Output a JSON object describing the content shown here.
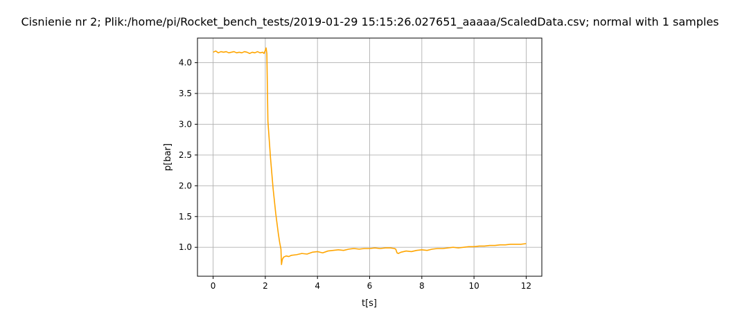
{
  "chart_data": {
    "type": "line",
    "title": "Cisnienie nr 2; Plik:/home/pi/Rocket_bench_tests/2019-01-29 15:15:26.027651_aaaaa/ScaledData.csv; normal with 1 samples",
    "xlabel": "t[s]",
    "ylabel": "p[bar]",
    "xlim": [
      -0.6,
      12.6
    ],
    "ylim": [
      0.53,
      4.4
    ],
    "xticks": [
      0,
      2,
      4,
      6,
      8,
      10,
      12
    ],
    "xtick_labels": [
      "0",
      "2",
      "4",
      "6",
      "8",
      "10",
      "12"
    ],
    "yticks": [
      1.0,
      1.5,
      2.0,
      2.5,
      3.0,
      3.5,
      4.0
    ],
    "ytick_labels": [
      "1.0",
      "1.5",
      "2.0",
      "2.5",
      "3.0",
      "3.5",
      "4.0"
    ],
    "grid": true,
    "legend": "none",
    "series": [
      {
        "color": "#ffa500",
        "x": [
          0.0,
          0.1,
          0.2,
          0.3,
          0.4,
          0.5,
          0.6,
          0.7,
          0.8,
          0.9,
          1.0,
          1.1,
          1.2,
          1.3,
          1.4,
          1.5,
          1.6,
          1.7,
          1.8,
          1.9,
          1.95,
          2.0,
          2.03,
          2.06,
          2.08,
          2.1,
          2.15,
          2.2,
          2.3,
          2.4,
          2.5,
          2.55,
          2.6,
          2.62,
          2.65,
          2.7,
          2.8,
          2.9,
          3.0,
          3.2,
          3.4,
          3.6,
          3.8,
          4.0,
          4.2,
          4.4,
          4.6,
          4.8,
          5.0,
          5.2,
          5.4,
          5.6,
          5.8,
          6.0,
          6.2,
          6.4,
          6.6,
          6.8,
          6.95,
          7.0,
          7.05,
          7.1,
          7.2,
          7.4,
          7.6,
          7.8,
          8.0,
          8.2,
          8.4,
          8.6,
          8.8,
          9.0,
          9.2,
          9.4,
          9.6,
          9.8,
          10.0,
          10.2,
          10.4,
          10.6,
          10.8,
          11.0,
          11.2,
          11.4,
          11.6,
          11.8,
          12.0
        ],
        "y": [
          4.17,
          4.19,
          4.16,
          4.18,
          4.17,
          4.18,
          4.16,
          4.17,
          4.18,
          4.16,
          4.17,
          4.16,
          4.18,
          4.17,
          4.15,
          4.17,
          4.16,
          4.18,
          4.16,
          4.17,
          4.15,
          4.2,
          4.24,
          4.15,
          3.6,
          3.05,
          2.75,
          2.45,
          1.95,
          1.55,
          1.22,
          1.08,
          0.97,
          0.72,
          0.8,
          0.84,
          0.86,
          0.85,
          0.87,
          0.88,
          0.9,
          0.89,
          0.92,
          0.93,
          0.91,
          0.94,
          0.95,
          0.96,
          0.95,
          0.97,
          0.98,
          0.97,
          0.98,
          0.98,
          0.99,
          0.98,
          0.99,
          0.99,
          0.98,
          0.97,
          0.91,
          0.9,
          0.92,
          0.94,
          0.93,
          0.95,
          0.96,
          0.95,
          0.97,
          0.98,
          0.98,
          0.99,
          1.0,
          0.99,
          1.0,
          1.01,
          1.01,
          1.02,
          1.02,
          1.03,
          1.03,
          1.04,
          1.04,
          1.05,
          1.05,
          1.05,
          1.06
        ]
      }
    ]
  }
}
